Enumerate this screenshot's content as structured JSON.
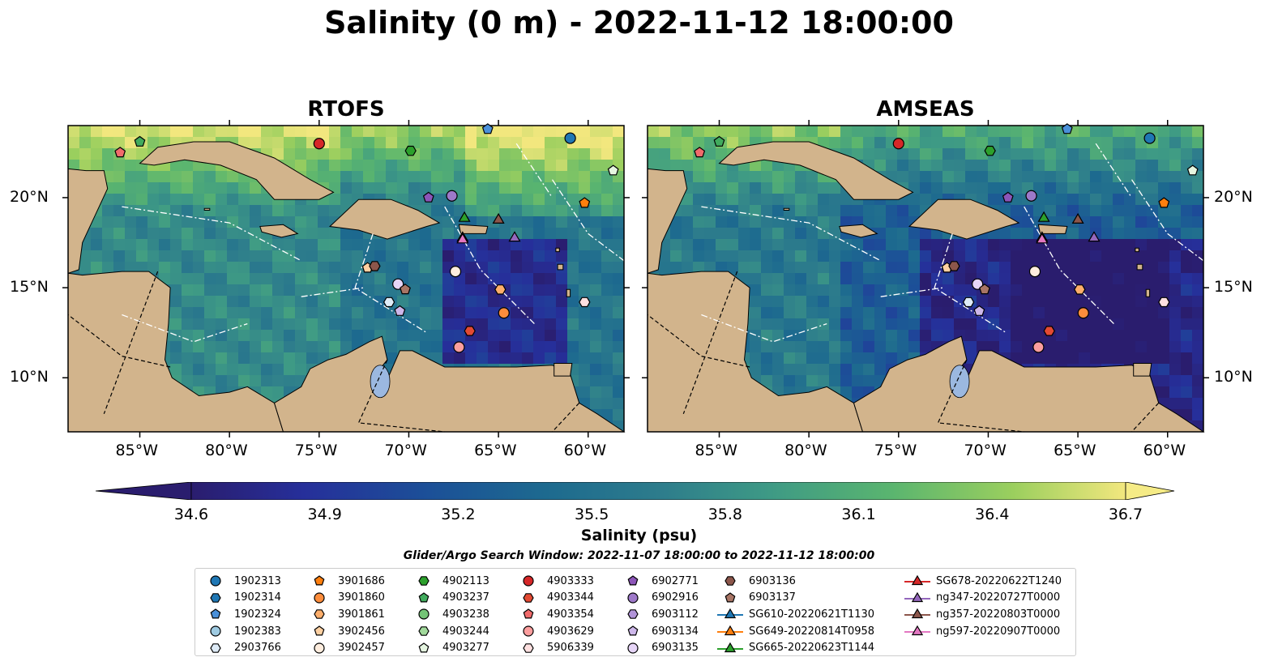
{
  "figure": {
    "title": "Salinity (0 m) - 2022-11-12 18:00:00",
    "panels": [
      {
        "title": "RTOFS"
      },
      {
        "title": "AMSEAS"
      }
    ],
    "lon_ticks": [
      "85°W",
      "80°W",
      "75°W",
      "70°W",
      "65°W",
      "60°W"
    ],
    "lat_ticks": [
      "20°N",
      "15°N",
      "10°N"
    ],
    "extent": {
      "lon": [
        -89,
        -58
      ],
      "lat": [
        7,
        24
      ]
    },
    "colorbar": {
      "label": "Salinity (psu)",
      "ticks": [
        "34.6",
        "34.9",
        "35.2",
        "35.5",
        "35.8",
        "36.1",
        "36.4",
        "36.7"
      ],
      "range": [
        34.6,
        36.7
      ],
      "colormap": "haline",
      "extend": "both"
    },
    "search_window": "Glider/Argo Search Window: 2022-11-07 18:00:00 to 2022-11-12 18:00:00"
  },
  "colors": {
    "land": "#d2b48c",
    "haline_low": "#2a1d6e",
    "haline_mid": "#2d7c8c",
    "haline_high": "#f2e77e",
    "lake": "#9bb8e0"
  },
  "legend": {
    "columns": [
      [
        {
          "label": "1902313",
          "marker": "circle",
          "color": "#1f77b4"
        },
        {
          "label": "1902314",
          "marker": "hexagon",
          "color": "#1f77b4"
        },
        {
          "label": "1902324",
          "marker": "pentagon",
          "color": "#4a90d9"
        },
        {
          "label": "1902383",
          "marker": "circle",
          "color": "#9ecae1"
        },
        {
          "label": "2903766",
          "marker": "hexagon",
          "color": "#deebf7"
        }
      ],
      [
        {
          "label": "3901686",
          "marker": "pentagon",
          "color": "#ff7f0e"
        },
        {
          "label": "3901860",
          "marker": "circle",
          "color": "#fd8d3c"
        },
        {
          "label": "3901861",
          "marker": "hexagon",
          "color": "#fdae6b"
        },
        {
          "label": "3902456",
          "marker": "pentagon",
          "color": "#fdd0a2"
        },
        {
          "label": "3902457",
          "marker": "circle",
          "color": "#feedde"
        }
      ],
      [
        {
          "label": "4902113",
          "marker": "hexagon",
          "color": "#2ca02c"
        },
        {
          "label": "4903237",
          "marker": "pentagon",
          "color": "#41ab5d"
        },
        {
          "label": "4903238",
          "marker": "circle",
          "color": "#74c476"
        },
        {
          "label": "4903244",
          "marker": "hexagon",
          "color": "#a1d99b"
        },
        {
          "label": "4903277",
          "marker": "pentagon",
          "color": "#e5f5e0"
        }
      ],
      [
        {
          "label": "4903333",
          "marker": "circle",
          "color": "#d62728"
        },
        {
          "label": "4903344",
          "marker": "hexagon",
          "color": "#e34a33"
        },
        {
          "label": "4903354",
          "marker": "pentagon",
          "color": "#f16b6b"
        },
        {
          "label": "4903629",
          "marker": "circle",
          "color": "#fc9e9e"
        },
        {
          "label": "5906339",
          "marker": "hexagon",
          "color": "#fee0e0"
        }
      ],
      [
        {
          "label": "6902771",
          "marker": "pentagon",
          "color": "#8c55b8"
        },
        {
          "label": "6902916",
          "marker": "circle",
          "color": "#9e79c9"
        },
        {
          "label": "6903112",
          "marker": "hexagon",
          "color": "#b294d9"
        },
        {
          "label": "6903134",
          "marker": "pentagon",
          "color": "#cdb7ea"
        },
        {
          "label": "6903135",
          "marker": "circle",
          "color": "#e6d5f7"
        }
      ],
      [
        {
          "label": "6903136",
          "marker": "hexagon",
          "color": "#8c564b"
        },
        {
          "label": "6903137",
          "marker": "pentagon",
          "color": "#a87565"
        },
        {
          "label": "SG610-20220621T1130",
          "marker": "triangle-line",
          "color": "#1f77b4"
        },
        {
          "label": "SG649-20220814T0958",
          "marker": "triangle-line",
          "color": "#ff7f0e"
        },
        {
          "label": "SG665-20220623T1144",
          "marker": "triangle-line",
          "color": "#2ca02c"
        }
      ],
      [
        {
          "label": "SG678-20220622T1240",
          "marker": "triangle-line",
          "color": "#d62728"
        },
        {
          "label": "ng347-20220727T0000",
          "marker": "triangle-line",
          "color": "#9467bd"
        },
        {
          "label": "ng357-20220803T0000",
          "marker": "triangle-line",
          "color": "#8c564b"
        },
        {
          "label": "ng597-20220907T0000",
          "marker": "triangle-line",
          "color": "#e377c2"
        }
      ]
    ]
  },
  "platforms": [
    {
      "id": "4903354",
      "lon": -86.1,
      "lat": 22.5
    },
    {
      "id": "4903237",
      "lon": -85.0,
      "lat": 23.1
    },
    {
      "id": "4903333",
      "lon": -75.0,
      "lat": 23.0
    },
    {
      "id": "1902324",
      "lon": -65.6,
      "lat": 23.8
    },
    {
      "id": "1902313",
      "lon": -61.0,
      "lat": 23.3
    },
    {
      "id": "4902113",
      "lon": -69.9,
      "lat": 22.6
    },
    {
      "id": "4903277",
      "lon": -58.6,
      "lat": 21.5
    },
    {
      "id": "6902771",
      "lon": -68.9,
      "lat": 20.0
    },
    {
      "id": "6902916",
      "lon": -67.6,
      "lat": 20.1
    },
    {
      "id": "3901686",
      "lon": -60.2,
      "lat": 19.7
    },
    {
      "id": "SG665-20220623T1144",
      "lon": -66.9,
      "lat": 18.9
    },
    {
      "id": "ng357-20220803T0000",
      "lon": -65.0,
      "lat": 18.8
    },
    {
      "id": "SG678-20220622T1240",
      "lon": -67.0,
      "lat": 17.8
    },
    {
      "id": "ng597-20220907T0000",
      "lon": -67.0,
      "lat": 17.7
    },
    {
      "id": "ng347-20220727T0000",
      "lon": -64.1,
      "lat": 17.8
    },
    {
      "id": "3902456",
      "lon": -72.3,
      "lat": 16.1
    },
    {
      "id": "6903136",
      "lon": -71.9,
      "lat": 16.2
    },
    {
      "id": "3902457",
      "lon": -67.4,
      "lat": 15.9
    },
    {
      "id": "6903135",
      "lon": -70.6,
      "lat": 15.2
    },
    {
      "id": "6903137",
      "lon": -70.2,
      "lat": 14.9
    },
    {
      "id": "3901861",
      "lon": -64.9,
      "lat": 14.9
    },
    {
      "id": "2903766",
      "lon": -71.1,
      "lat": 14.2
    },
    {
      "id": "6903134",
      "lon": -70.5,
      "lat": 13.7
    },
    {
      "id": "3901860",
      "lon": -64.7,
      "lat": 13.6
    },
    {
      "id": "5906339",
      "lon": -60.2,
      "lat": 14.2
    },
    {
      "id": "4903344",
      "lon": -66.6,
      "lat": 12.6
    },
    {
      "id": "4903629",
      "lon": -67.2,
      "lat": 11.7
    }
  ]
}
